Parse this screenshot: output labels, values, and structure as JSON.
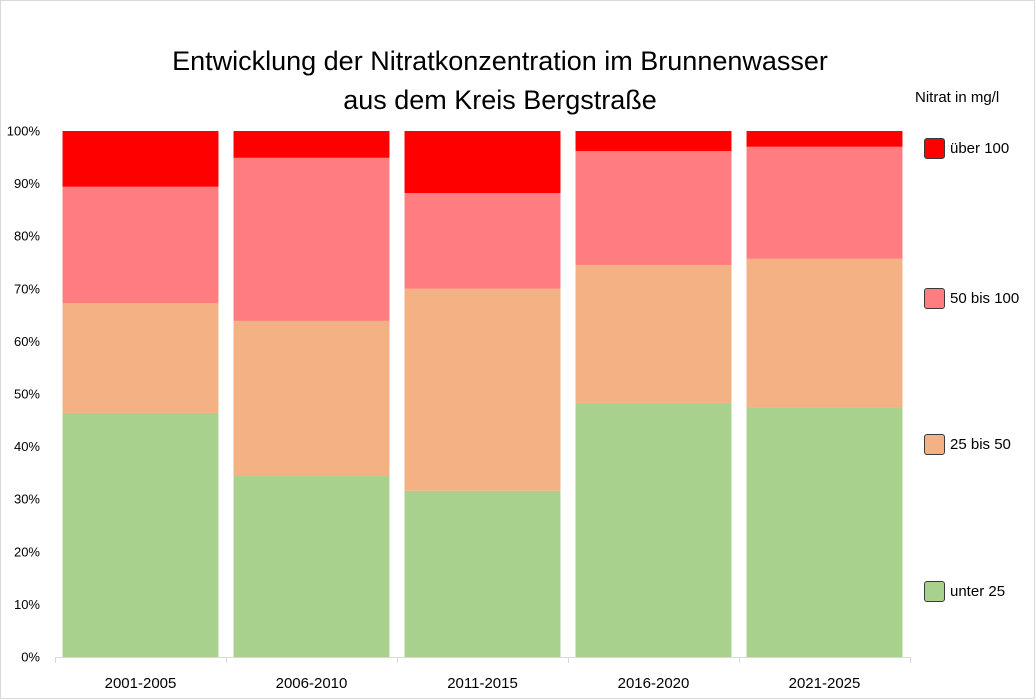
{
  "chart_data": {
    "type": "bar",
    "stacked": true,
    "normalized": true,
    "title": [
      "Entwicklung der Nitratkonzentration im Brunnenwasser",
      "aus dem Kreis Bergstraße"
    ],
    "categories": [
      "2001-2005",
      "2006-2010",
      "2011-2015",
      "2016-2020",
      "2021-2025"
    ],
    "series": [
      {
        "name": "unter 25",
        "color": "#a9d18e",
        "values": [
          46.4,
          34.4,
          31.6,
          48.3,
          47.5
        ]
      },
      {
        "name": "25 bis 50",
        "color": "#f4b183",
        "values": [
          20.9,
          29.5,
          38.4,
          26.2,
          28.2
        ]
      },
      {
        "name": "50 bis 100",
        "color": "#ff7c80",
        "values": [
          22.1,
          31.0,
          18.2,
          21.7,
          21.3
        ]
      },
      {
        "name": "über 100",
        "color": "#ff0000",
        "values": [
          10.6,
          5.1,
          11.8,
          3.8,
          3.0
        ]
      }
    ],
    "ylim": [
      0,
      100
    ],
    "yticks": [
      0,
      10,
      20,
      30,
      40,
      50,
      60,
      70,
      80,
      90,
      100
    ],
    "ytick_labels": [
      "0%",
      "10%",
      "20%",
      "30%",
      "40%",
      "50%",
      "60%",
      "70%",
      "80%",
      "90%",
      "100%"
    ],
    "legend_title": "Nitrat in mg/l",
    "legend_position": "right",
    "grid": false
  }
}
